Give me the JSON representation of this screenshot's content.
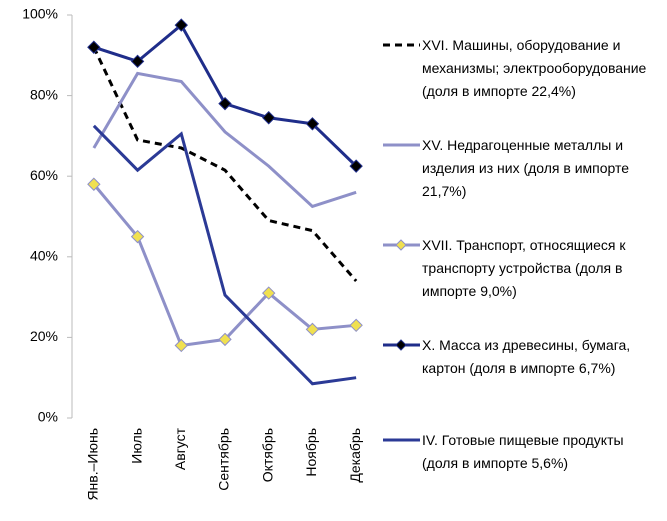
{
  "chart_data": {
    "type": "line",
    "categories": [
      "Янв.–Июнь",
      "Июль",
      "Август",
      "Сентябрь",
      "Октябрь",
      "Ноябрь",
      "Декабрь"
    ],
    "series": [
      {
        "name": "XVI. Машины, оборудование и механизмы; электрооборудование (доля в импорте 22,4%)",
        "color": "#000000",
        "dash": true,
        "values": [
          92,
          69,
          67,
          61.5,
          49,
          46.5,
          34
        ]
      },
      {
        "name": "XV. Недрагоценные металлы и изделия из них (доля в импорте 21,7%)",
        "color": "#8e90c8",
        "values": [
          67,
          85.5,
          83.5,
          71,
          62.5,
          52.5,
          56
        ]
      },
      {
        "name": "XVII. Транспорт, относящиеся к транспорту устройства (доля в импорте 9,0%)",
        "color": "#8e90c8",
        "marker_color": "#f0e050",
        "values": [
          58,
          45,
          18,
          19.5,
          31,
          22,
          23
        ]
      },
      {
        "name": "X. Масса из древесины, бумага, картон (доля в импорте 6,7%)",
        "color": "#1f2d8a",
        "marker_color": "#000000",
        "values": [
          92,
          88.5,
          97.5,
          78,
          74.5,
          73,
          62.5
        ]
      },
      {
        "name": "IV. Готовые пищевые продукты (доля в импорте 5,6%)",
        "color": "#2b3a96",
        "values": [
          72.5,
          61.5,
          70.5,
          30.5,
          19.5,
          8.5,
          10
        ]
      }
    ],
    "ylim": [
      0,
      100
    ],
    "yticks": [
      {
        "value": 0,
        "label": "0%"
      },
      {
        "value": 20,
        "label": "20%"
      },
      {
        "value": 40,
        "label": "40%"
      },
      {
        "value": 60,
        "label": "60%"
      },
      {
        "value": 80,
        "label": "80%"
      },
      {
        "value": 100,
        "label": "100%"
      }
    ],
    "grid": false
  }
}
